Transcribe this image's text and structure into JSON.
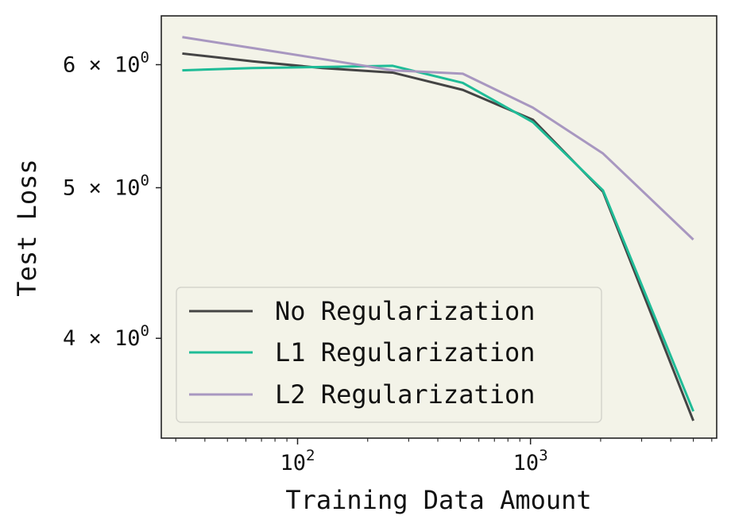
{
  "chart_data": {
    "type": "line",
    "title": "",
    "xlabel": "Training Data Amount",
    "ylabel": "Test Loss",
    "xscale": "log",
    "yscale": "log",
    "xlim": [
      26,
      6300
    ],
    "ylim": [
      3.45,
      6.45
    ],
    "x_ticks": [
      {
        "value": 100,
        "base": "10",
        "exp": "2"
      },
      {
        "value": 1000,
        "base": "10",
        "exp": "3"
      }
    ],
    "y_ticks": [
      {
        "value": 4,
        "label": "4 × 10",
        "exp": "0"
      },
      {
        "value": 5,
        "label": "5 × 10",
        "exp": "0"
      },
      {
        "value": 6,
        "label": "6 × 10",
        "exp": "0"
      }
    ],
    "x": [
      32,
      64,
      128,
      256,
      512,
      1024,
      2048,
      5000
    ],
    "series": [
      {
        "name": "No Regularization",
        "color": "#444444",
        "values": [
          6.1,
          6.03,
          5.97,
          5.93,
          5.78,
          5.53,
          4.97,
          3.54
        ]
      },
      {
        "name": "L1 Regularization",
        "color": "#1fbc97",
        "values": [
          5.95,
          5.97,
          5.98,
          5.99,
          5.84,
          5.51,
          4.98,
          3.59
        ]
      },
      {
        "name": "L2 Regularization",
        "color": "#a897c0",
        "values": [
          6.25,
          6.15,
          6.05,
          5.95,
          5.92,
          5.63,
          5.26,
          4.63
        ]
      }
    ],
    "grid": false,
    "legend_position": "lower-left",
    "colors": {
      "plot_background": "#f3f3e8",
      "frame": "#222222"
    }
  }
}
